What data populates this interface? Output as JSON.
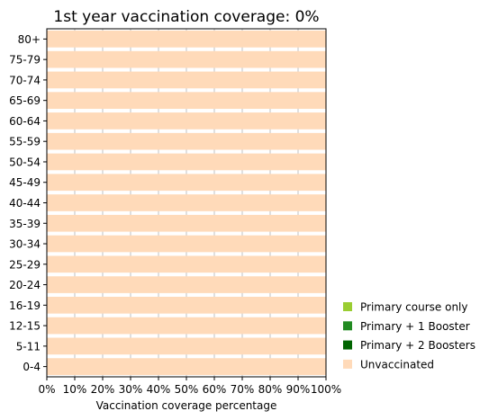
{
  "chart_data": {
    "type": "bar",
    "orientation": "horizontal",
    "stacked": true,
    "title": "1st year vaccination coverage: 0%",
    "xlabel": "Vaccination coverage percentage",
    "ylabel": "",
    "xlim": [
      0,
      100
    ],
    "x_ticks": [
      "0%",
      "10%",
      "20%",
      "30%",
      "40%",
      "50%",
      "60%",
      "70%",
      "80%",
      "90%",
      "100%"
    ],
    "grid": "vertical",
    "legend_position": "lower-right-outside",
    "categories": [
      "0-4",
      "5-11",
      "12-15",
      "16-19",
      "20-24",
      "25-29",
      "30-34",
      "35-39",
      "40-44",
      "45-49",
      "50-54",
      "55-59",
      "60-64",
      "65-69",
      "70-74",
      "75-79",
      "80+"
    ],
    "series": [
      {
        "name": "Primary course only",
        "color": "#9acd32",
        "values": [
          0,
          0,
          0,
          0,
          0,
          0,
          0,
          0,
          0,
          0,
          0,
          0,
          0,
          0,
          0,
          0,
          0
        ]
      },
      {
        "name": "Primary + 1 Booster",
        "color": "#228b22",
        "values": [
          0,
          0,
          0,
          0,
          0,
          0,
          0,
          0,
          0,
          0,
          0,
          0,
          0,
          0,
          0,
          0,
          0
        ]
      },
      {
        "name": "Primary + 2 Boosters",
        "color": "#006400",
        "values": [
          0,
          0,
          0,
          0,
          0,
          0,
          0,
          0,
          0,
          0,
          0,
          0,
          0,
          0,
          0,
          0,
          0
        ]
      },
      {
        "name": "Unvaccinated",
        "color": "#ffdab9",
        "values": [
          100,
          100,
          100,
          100,
          100,
          100,
          100,
          100,
          100,
          100,
          100,
          100,
          100,
          100,
          100,
          100,
          100
        ]
      }
    ]
  }
}
